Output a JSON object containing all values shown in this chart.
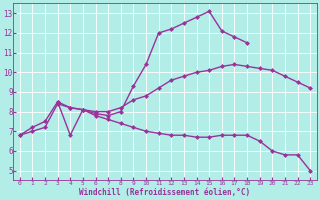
{
  "title": "",
  "xlabel": "Windchill (Refroidissement éolien,°C)",
  "ylabel": "",
  "bg_color": "#b2ede8",
  "line_color": "#993399",
  "xlim": [
    -0.5,
    23.5
  ],
  "ylim": [
    4.5,
    13.5
  ],
  "xticks": [
    0,
    1,
    2,
    3,
    4,
    5,
    6,
    7,
    8,
    9,
    10,
    11,
    12,
    13,
    14,
    15,
    16,
    17,
    18,
    19,
    20,
    21,
    22,
    23
  ],
  "yticks": [
    5,
    6,
    7,
    8,
    9,
    10,
    11,
    12,
    13
  ],
  "line1_x": [
    0,
    1,
    2,
    3,
    4,
    5,
    6,
    7,
    8,
    9,
    10,
    11,
    12,
    13,
    14,
    15,
    16,
    17,
    18,
    19,
    20,
    21,
    22,
    23
  ],
  "line1_y": [
    6.8,
    7.2,
    7.5,
    8.5,
    8.2,
    8.1,
    8.0,
    8.0,
    8.2,
    8.6,
    8.8,
    9.2,
    9.6,
    9.8,
    10.0,
    10.1,
    10.3,
    10.4,
    10.3,
    10.2,
    10.1,
    9.8,
    9.5,
    9.2
  ],
  "line2_x": [
    3,
    4,
    5,
    6,
    7,
    8,
    9,
    10,
    11,
    12,
    13,
    14,
    15,
    16,
    17,
    18
  ],
  "line2_y": [
    8.5,
    6.8,
    8.1,
    7.9,
    7.8,
    8.0,
    9.3,
    10.4,
    12.0,
    12.2,
    12.5,
    12.8,
    13.1,
    12.1,
    11.8,
    11.5
  ],
  "line3_x": [
    0,
    1,
    2,
    3,
    4,
    5,
    6,
    7,
    8,
    9,
    10,
    11,
    12,
    13,
    14,
    15,
    16,
    17,
    18,
    19,
    20,
    21,
    22,
    23
  ],
  "line3_y": [
    6.8,
    7.0,
    7.2,
    8.4,
    8.2,
    8.1,
    7.8,
    7.6,
    7.4,
    7.2,
    7.0,
    6.9,
    6.8,
    6.8,
    6.7,
    6.7,
    6.8,
    6.8,
    6.8,
    6.5,
    6.0,
    5.8,
    5.8,
    5.0
  ],
  "marker": "D",
  "markersize": 2.5,
  "linewidth": 1.0
}
